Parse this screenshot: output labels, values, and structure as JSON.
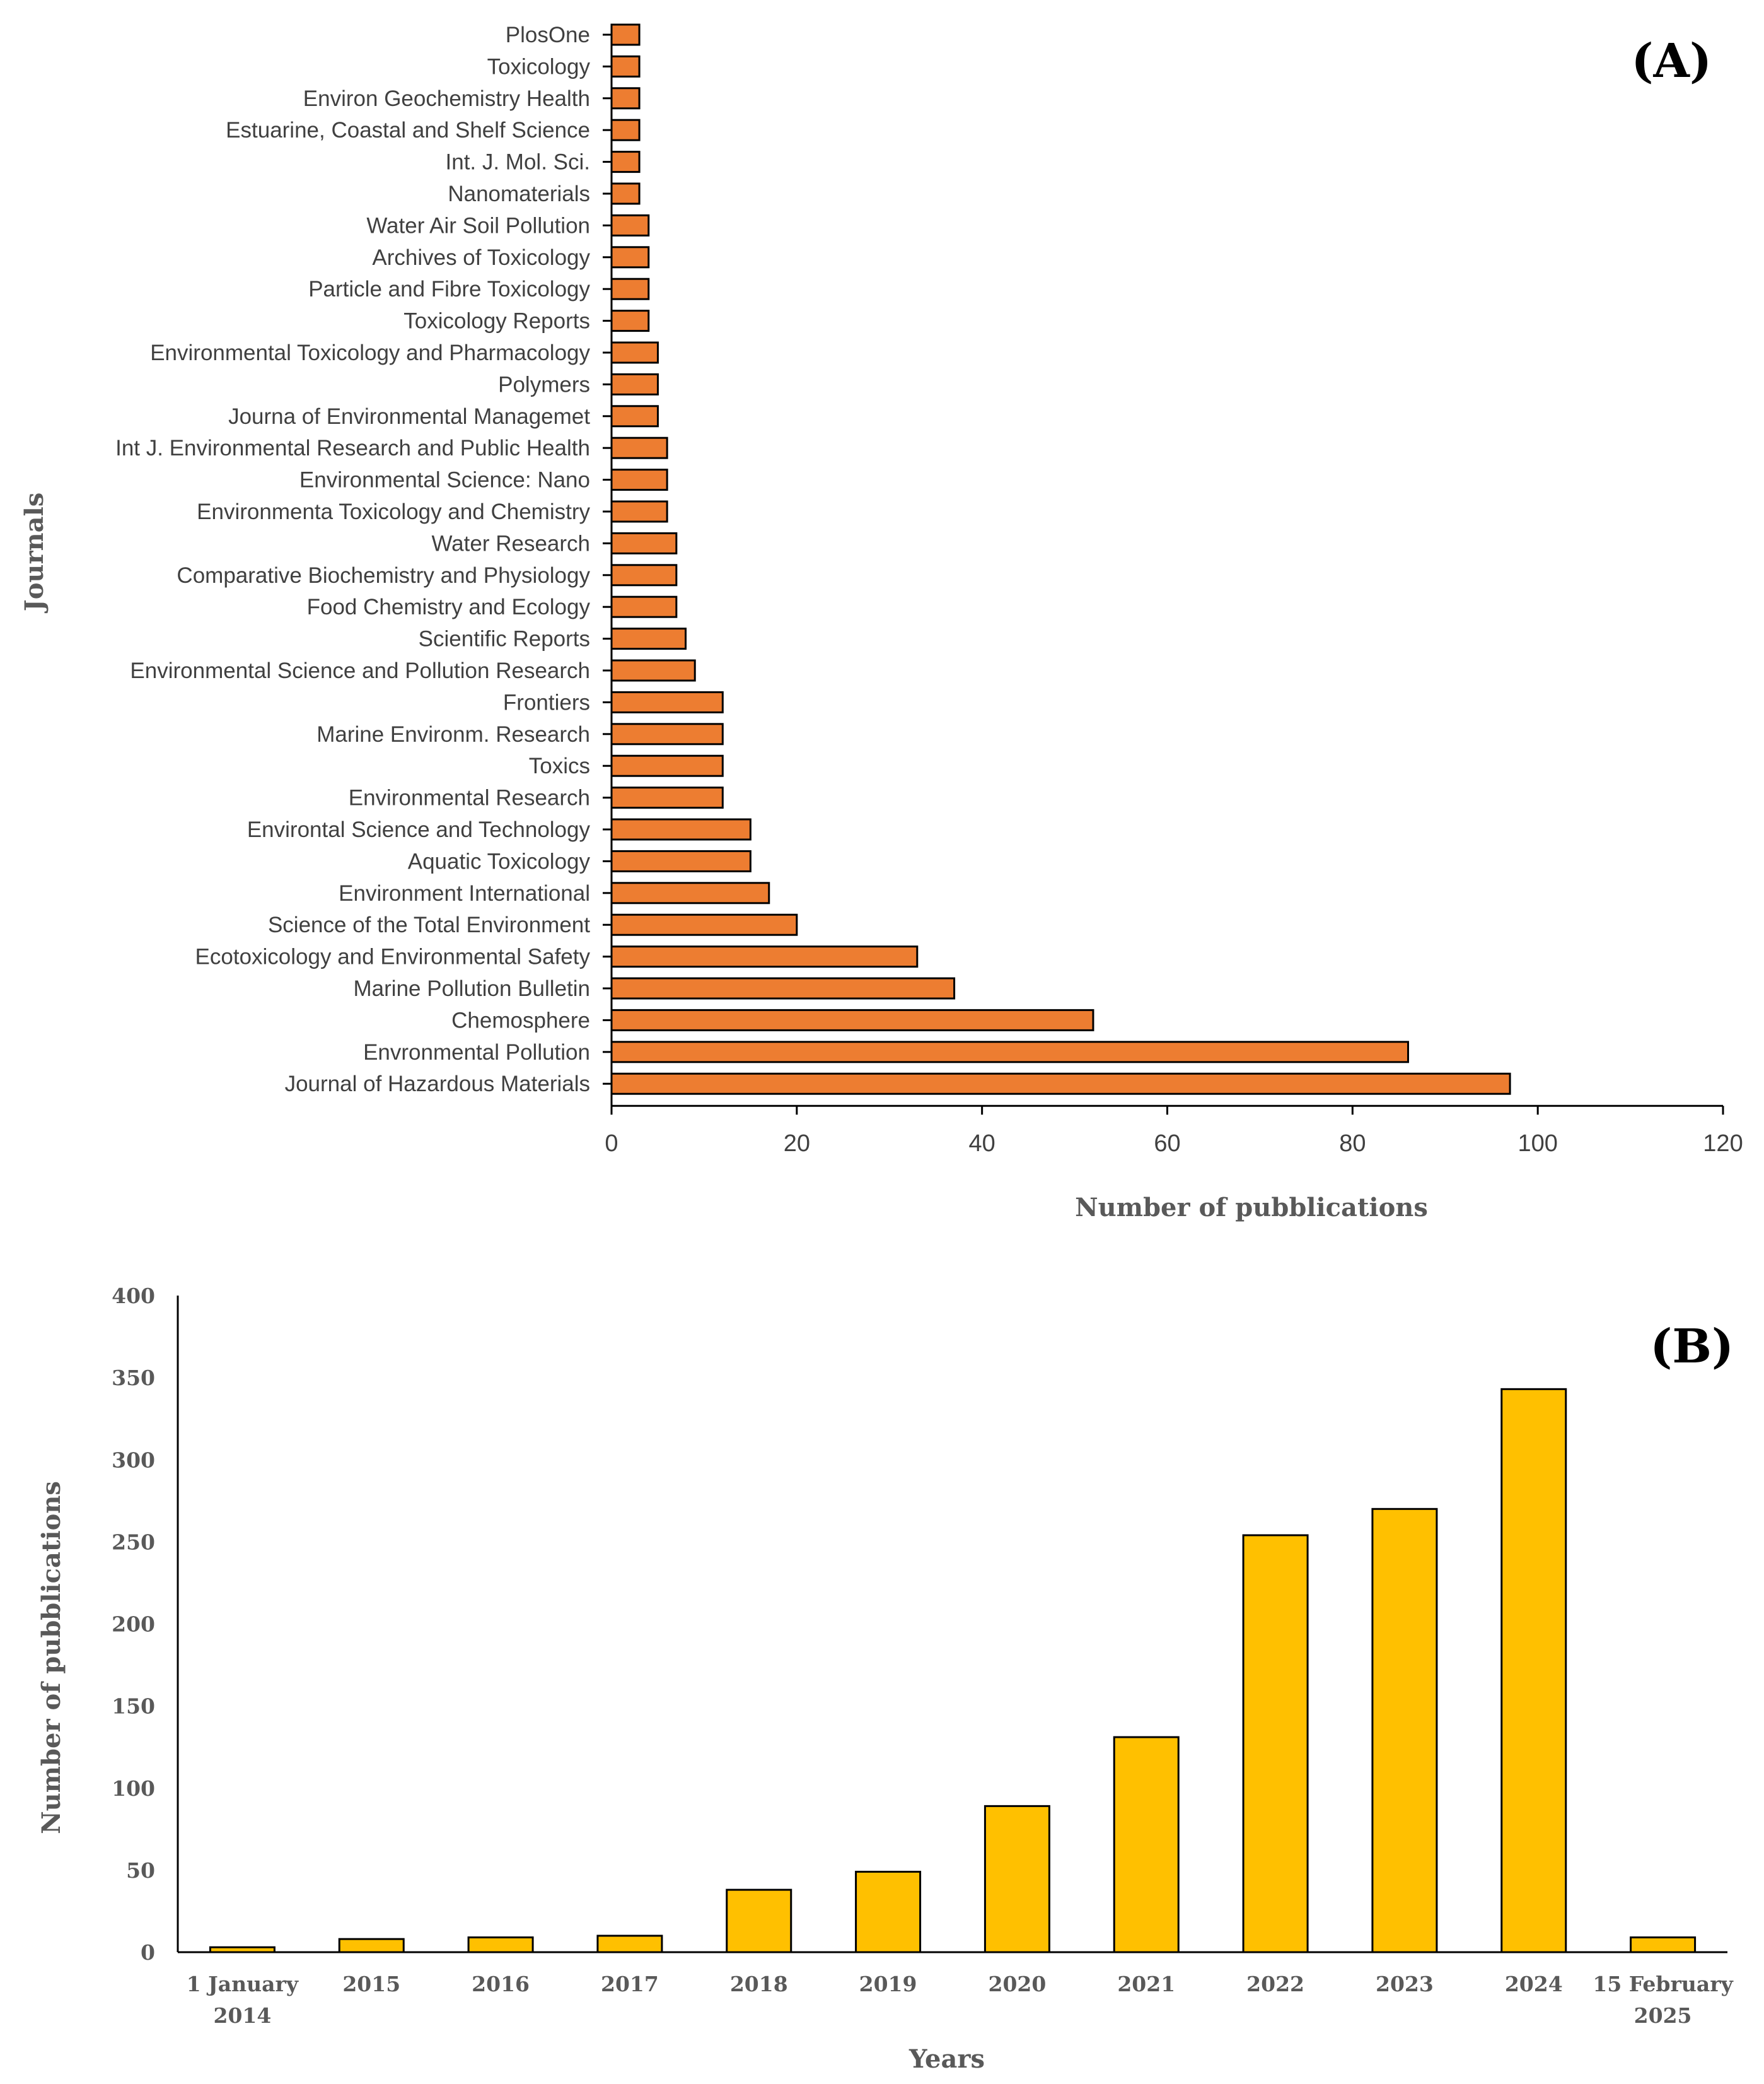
{
  "colors": {
    "panel_a_bar": "#ED7D31",
    "panel_b_bar": "#FFC000",
    "bar_stroke": "#000000",
    "axis": "#000000",
    "text": "#404040"
  },
  "chart_data": [
    {
      "type": "bar",
      "orientation": "horizontal",
      "panel_label": "(A)",
      "title": "",
      "xlabel": "Number of  pubblications",
      "ylabel": "Journals",
      "xlim": [
        0,
        120
      ],
      "x_ticks": [
        "0",
        "20",
        "40",
        "60",
        "80",
        "100",
        "120"
      ],
      "grid": false,
      "legend": "none",
      "categories": [
        "PlosOne",
        "Toxicology",
        "Environ Geochemistry  Health",
        "Estuarine, Coastal and Shelf Science",
        "Int. J. Mol. Sci.",
        "Nanomaterials",
        "Water Air Soil Pollution",
        "Archives of Toxicology",
        "Particle and Fibre Toxicology",
        "Toxicology Reports",
        "Environmental Toxicology and Pharmacology",
        "Polymers",
        "Journa of Environmental Managemet",
        "Int J. Environmental Research and Public Health",
        "Environmental Science: Nano",
        "Environmenta Toxicology and Chemistry",
        "Water Research",
        "Comparative Biochemistry and Physiology",
        "Food Chemistry and Ecology",
        "Scientific Reports",
        "Environmental Science and Pollution Research",
        "Frontiers",
        "Marine Environm. Research",
        "Toxics",
        "Environmental Research",
        "Environtal Science and Technology",
        "Aquatic Toxicology",
        "Environment International",
        "Science of the Total Environment",
        "Ecotoxicology and Environmental Safety",
        "Marine Pollution Bulletin",
        "Chemosphere",
        "Envronmental Pollution",
        "Journal of Hazardous Materials"
      ],
      "values": [
        3,
        3,
        3,
        3,
        3,
        3,
        4,
        4,
        4,
        4,
        5,
        5,
        5,
        6,
        6,
        6,
        7,
        7,
        7,
        8,
        9,
        12,
        12,
        12,
        12,
        15,
        15,
        17,
        20,
        33,
        37,
        52,
        86,
        97
      ]
    },
    {
      "type": "bar",
      "orientation": "vertical",
      "panel_label": "(B)",
      "title": "",
      "xlabel": "Years",
      "ylabel": "Number of pubblications",
      "ylim": [
        0,
        400
      ],
      "y_ticks": [
        "0",
        "50",
        "100",
        "150",
        "200",
        "250",
        "300",
        "350",
        "400"
      ],
      "grid": false,
      "legend": "none",
      "categories": [
        [
          "1 January",
          "2014"
        ],
        [
          "2015"
        ],
        [
          "2016"
        ],
        [
          "2017"
        ],
        [
          "2018"
        ],
        [
          "2019"
        ],
        [
          "2020"
        ],
        [
          "2021"
        ],
        [
          "2022"
        ],
        [
          "2023"
        ],
        [
          "2024"
        ],
        [
          "15 February",
          "2025"
        ]
      ],
      "values": [
        3,
        8,
        9,
        10,
        38,
        49,
        89,
        131,
        254,
        270,
        343,
        9
      ]
    }
  ]
}
